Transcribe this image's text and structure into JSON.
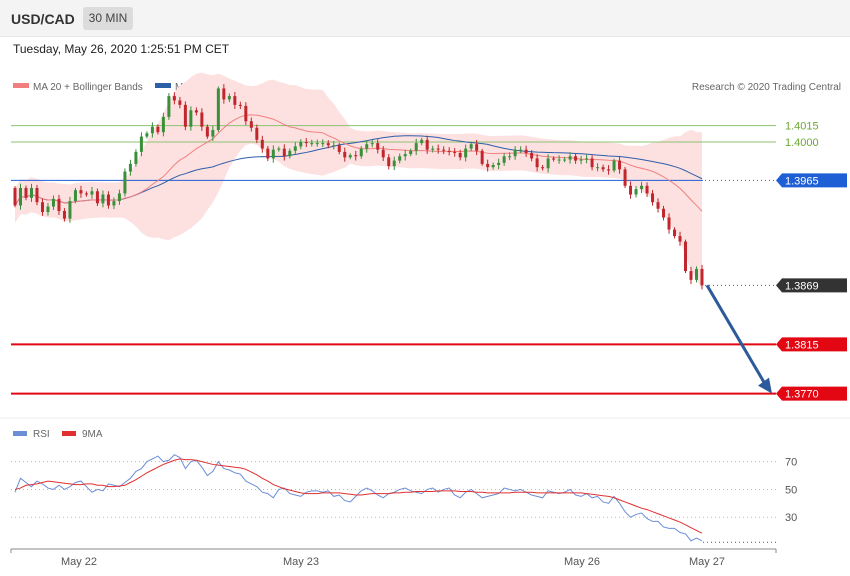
{
  "header": {
    "symbol": "USD/CAD",
    "timeframe": "30 MIN",
    "timestamp": "Tuesday, May 26, 2020 1:25:51 PM CET"
  },
  "legend": {
    "ma20": "MA 20 + Bollinger Bands",
    "ma50": "MA 50",
    "credit": "Research © 2020 Trading Central",
    "rsi": "RSI",
    "rsi_ma": "9MA"
  },
  "colors": {
    "up": "#3a8f3a",
    "down": "#c0262b",
    "ma20": "#f08080",
    "ma50": "#2d5ea8",
    "band": "#fde0e0",
    "resistance": "#8dc26f",
    "pivot": "#1f5fd6",
    "support": "#e30613",
    "current": "#333333",
    "arrow": "#2d5a9a",
    "rsi": "#6b8ed6",
    "rsi_ma": "#e03030"
  },
  "chart_data": [
    {
      "type": "candlestick",
      "ylim": [
        1.3755,
        1.4075
      ],
      "x_ticks": [
        "May 22",
        "May 23",
        "May 26",
        "May 27"
      ],
      "levels": [
        {
          "label": "1.4015",
          "value": 1.4015,
          "kind": "resistance"
        },
        {
          "label": "1.4000",
          "value": 1.4,
          "kind": "resistance"
        },
        {
          "label": "1.3965",
          "value": 1.3965,
          "kind": "pivot"
        },
        {
          "label": "1.3869",
          "value": 1.3869,
          "kind": "current"
        },
        {
          "label": "1.3815",
          "value": 1.3815,
          "kind": "support"
        },
        {
          "label": "1.3770",
          "value": 1.377,
          "kind": "support"
        }
      ],
      "close": [
        1.3942,
        1.3958,
        1.3949,
        1.3958,
        1.3945,
        1.3936,
        1.3941,
        1.3948,
        1.3937,
        1.393,
        1.3946,
        1.3956,
        1.3953,
        1.3952,
        1.3955,
        1.3944,
        1.3952,
        1.3942,
        1.3946,
        1.3953,
        1.3973,
        1.398,
        1.3991,
        1.4005,
        1.4008,
        1.4014,
        1.4009,
        1.4023,
        1.4042,
        1.4038,
        1.4034,
        1.4014,
        1.4029,
        1.4027,
        1.4014,
        1.4005,
        1.4011,
        1.4049,
        1.4039,
        1.4042,
        1.4034,
        1.4033,
        1.4019,
        1.4013,
        1.4002,
        1.3994,
        1.3985,
        1.3993,
        1.3994,
        1.3987,
        1.3992,
        1.3996,
        1.4,
        1.3999,
        1.3999,
        1.3999,
        1.3999,
        1.3997,
        1.3997,
        1.3991,
        1.3986,
        1.3988,
        1.3987,
        1.3994,
        1.3998,
        1.3999,
        1.3993,
        1.3986,
        1.3978,
        1.3983,
        1.3987,
        1.3989,
        1.3992,
        1.3999,
        1.4002,
        1.3993,
        1.3994,
        1.3993,
        1.3992,
        1.3991,
        1.399,
        1.3986,
        1.3994,
        1.3998,
        1.3992,
        1.398,
        1.3977,
        1.3979,
        1.3981,
        1.3987,
        1.3987,
        1.3993,
        1.3993,
        1.399,
        1.3985,
        1.3977,
        1.3976,
        1.3985,
        1.3984,
        1.3984,
        1.3984,
        1.3987,
        1.3983,
        1.3984,
        1.3985,
        1.3977,
        1.3977,
        1.3975,
        1.3974,
        1.3983,
        1.3975,
        1.396,
        1.3952,
        1.3957,
        1.396,
        1.3953,
        1.3945,
        1.3939,
        1.3931,
        1.392,
        1.3914,
        1.3909,
        1.3882,
        1.3874,
        1.3884,
        1.3869
      ],
      "open_first": 1.3958,
      "range": 0.0011
    },
    {
      "type": "line",
      "title": "RSI",
      "ylim": [
        10,
        82
      ],
      "y_ticks": [
        70,
        50,
        30
      ],
      "series": [
        {
          "name": "RSI",
          "values": [
            48,
            58,
            55,
            52,
            56,
            54,
            51,
            50,
            53,
            50,
            52,
            55,
            56,
            52,
            48,
            50,
            49,
            54,
            53,
            52,
            55,
            58,
            63,
            65,
            70,
            72,
            74,
            70,
            71,
            75,
            73,
            65,
            70,
            71,
            66,
            60,
            63,
            70,
            65,
            64,
            62,
            61,
            56,
            54,
            52,
            48,
            47,
            44,
            50,
            51,
            47,
            46,
            45,
            48,
            49,
            49,
            48,
            49,
            45,
            46,
            42,
            41,
            45,
            49,
            51,
            49,
            46,
            44,
            47,
            48,
            50,
            51,
            49,
            48,
            47,
            50,
            51,
            48,
            50,
            51,
            46,
            44,
            48,
            50,
            47,
            44,
            45,
            46,
            47,
            51,
            50,
            49,
            50,
            48,
            46,
            45,
            44,
            49,
            48,
            47,
            48,
            50,
            46,
            45,
            47,
            44,
            45,
            41,
            40,
            45,
            40,
            34,
            30,
            32,
            33,
            29,
            27,
            27,
            23,
            22,
            22,
            19,
            18,
            13,
            15,
            13
          ]
        },
        {
          "name": "9MA",
          "values": [
            50,
            51,
            53,
            53.5,
            54,
            55,
            56,
            55.5,
            55,
            54.5,
            54,
            53.5,
            53.5,
            54,
            54,
            53,
            53,
            52,
            52,
            52.5,
            53,
            55,
            57,
            59.5,
            62,
            64,
            66,
            68,
            69.5,
            71,
            72,
            71.5,
            71.5,
            71,
            70,
            69,
            68,
            67.5,
            67,
            66.5,
            66,
            65.5,
            64.5,
            62.5,
            60.5,
            58,
            56,
            53.5,
            52,
            50.5,
            49.5,
            48.5,
            47.5,
            47,
            47,
            47,
            47.5,
            47.5,
            47.5,
            47.5,
            47,
            46.5,
            46,
            46,
            46.5,
            47,
            47,
            47,
            47,
            47.5,
            47.5,
            48,
            48,
            48.5,
            48.5,
            48.5,
            48.5,
            49,
            49,
            49,
            49,
            48.5,
            48.5,
            48.5,
            48,
            48,
            47.5,
            47.5,
            47.5,
            47.5,
            47.5,
            48,
            48,
            48,
            48,
            47.5,
            47.5,
            47.5,
            47.5,
            47.5,
            47.5,
            47.5,
            47.5,
            47.5,
            47,
            46.5,
            46,
            45.5,
            45,
            44,
            42.5,
            41,
            39.5,
            38,
            36.5,
            35.5,
            34,
            32.5,
            31,
            29.5,
            28,
            26.5,
            24.5,
            22.5,
            20.5,
            18.5
          ]
        }
      ]
    }
  ]
}
